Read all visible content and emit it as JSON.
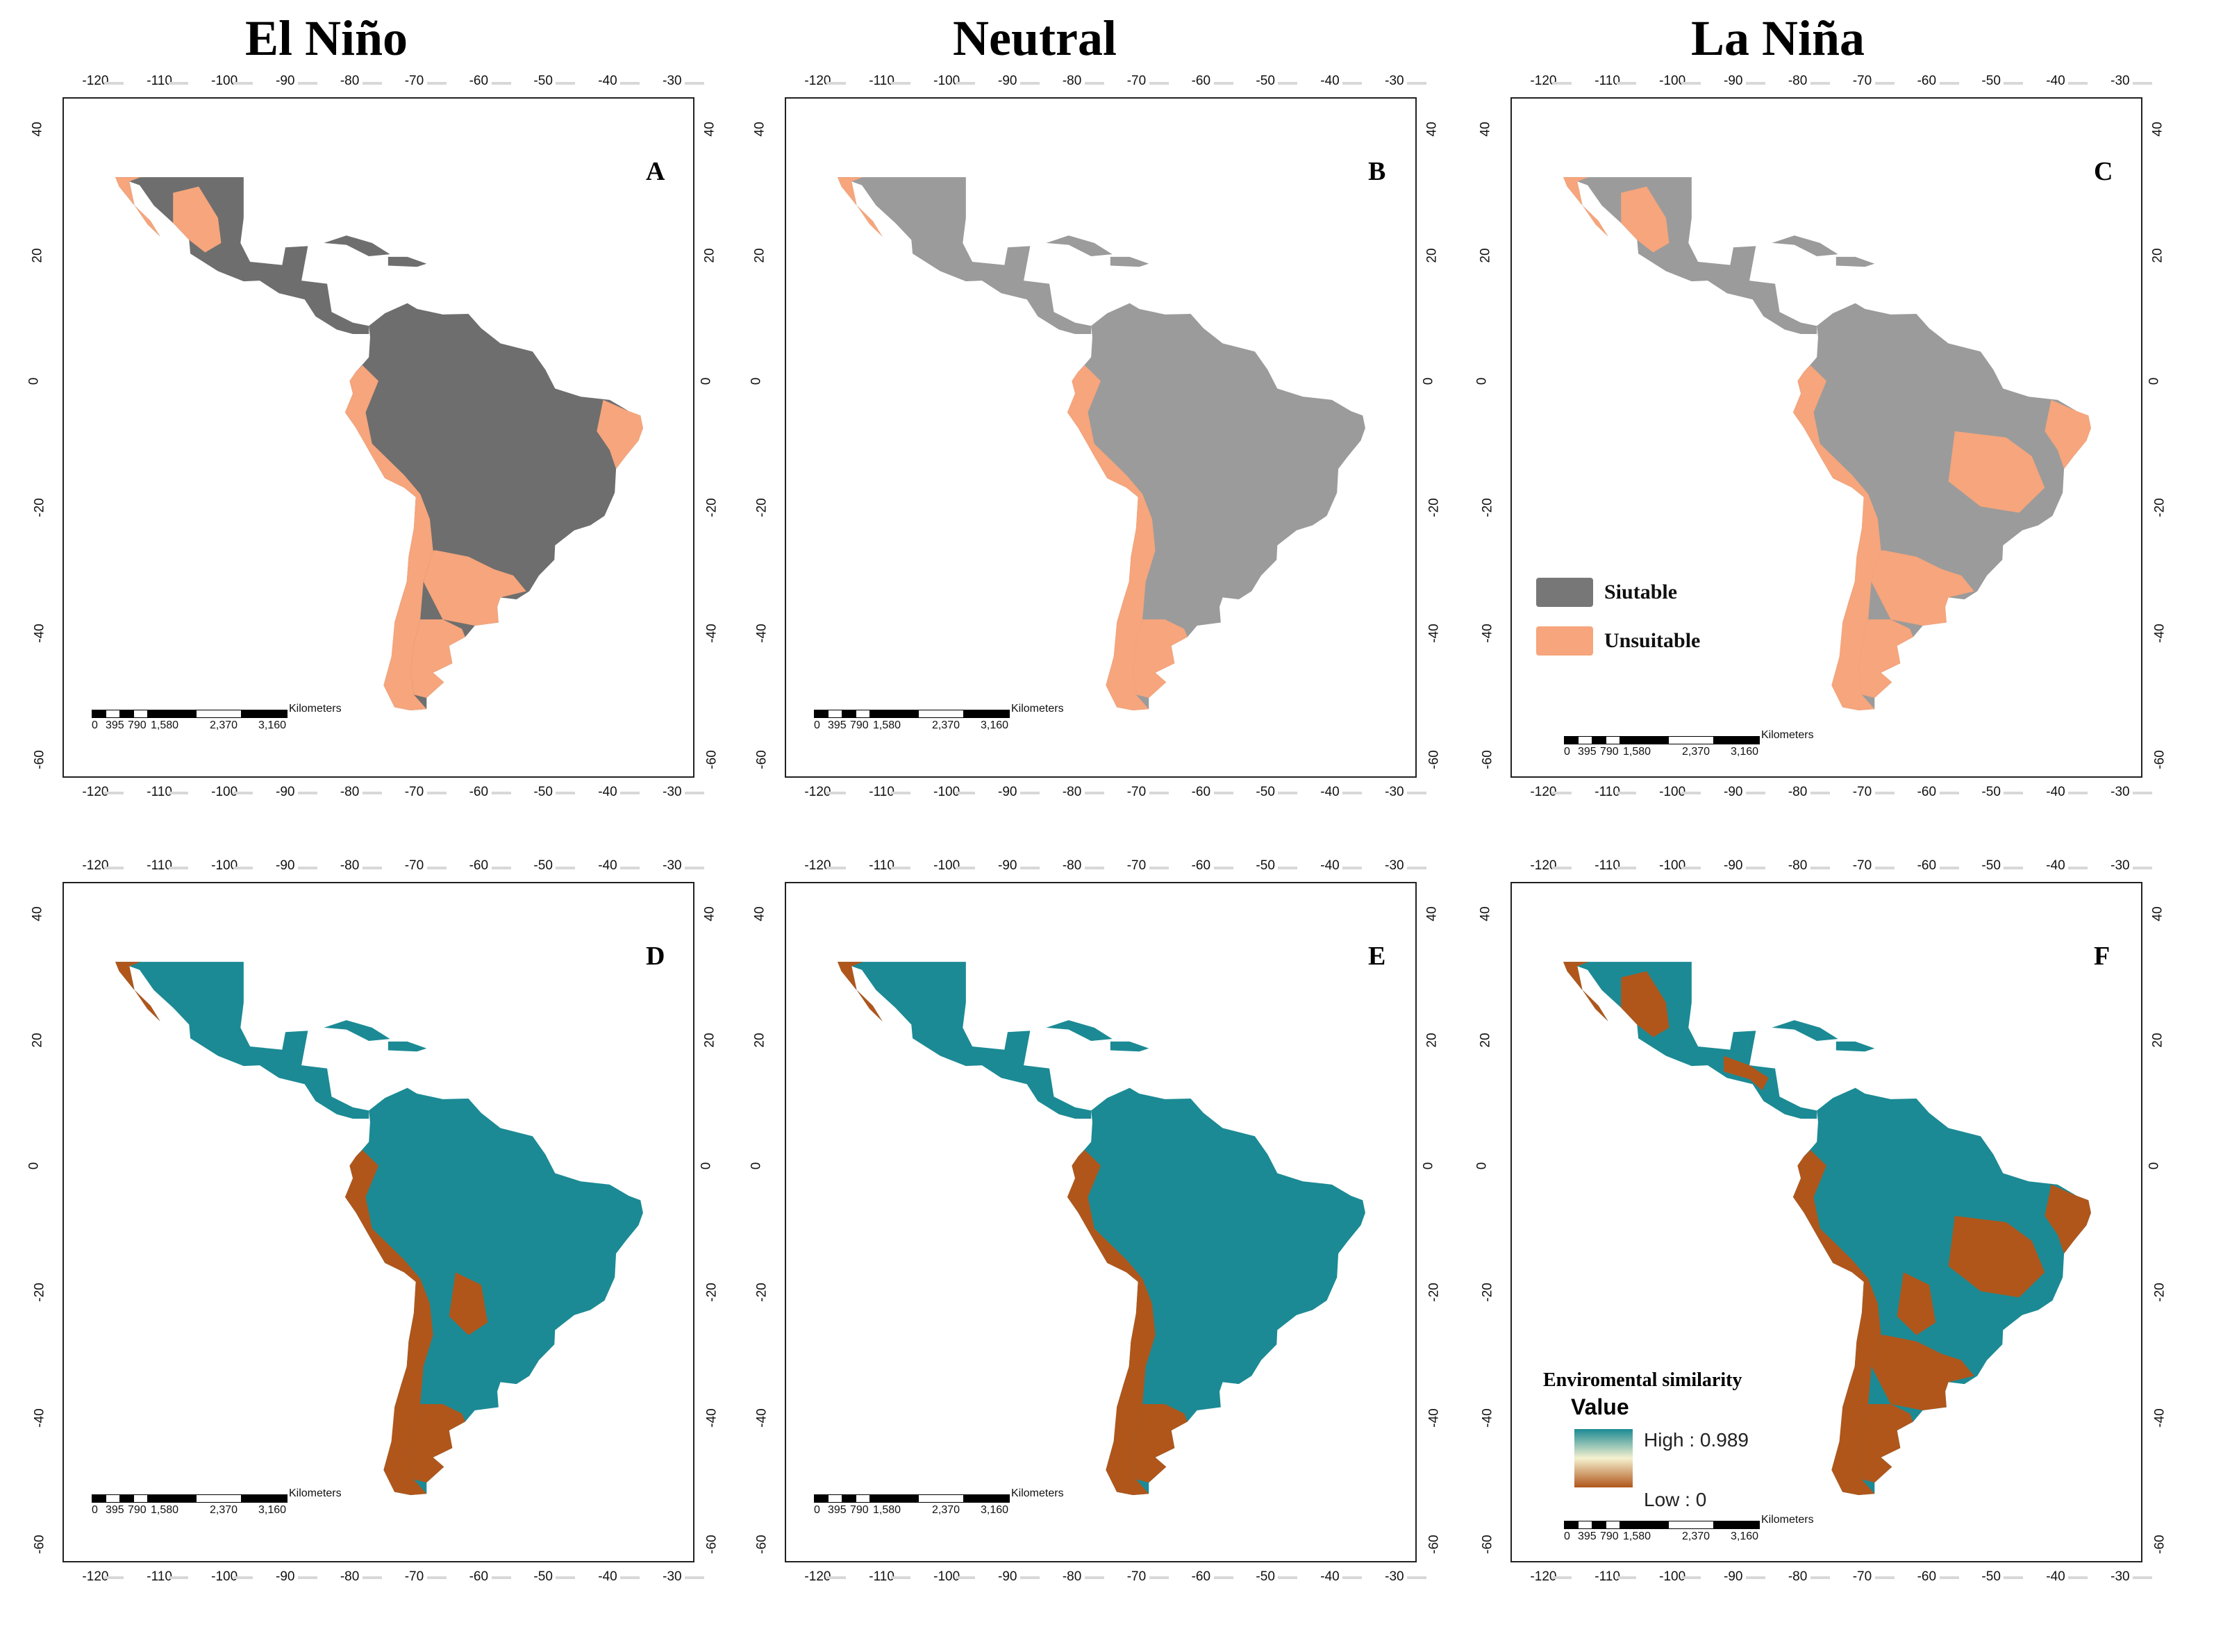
{
  "columns": [
    {
      "title": "El Niño"
    },
    {
      "title": "Neutral"
    },
    {
      "title": "La Niña"
    }
  ],
  "lon_ticks": [
    "-120",
    "-110",
    "-100",
    "-90",
    "-80",
    "-70",
    "-60",
    "-50",
    "-40",
    "-30"
  ],
  "lat_ticks": [
    "40",
    "20",
    "0",
    "-20",
    "-40",
    "-60"
  ],
  "panels": [
    {
      "letter": "A",
      "style": "suitability",
      "column": "El Niño"
    },
    {
      "letter": "B",
      "style": "suitability",
      "column": "Neutral"
    },
    {
      "letter": "C",
      "style": "suitability",
      "column": "La Niña"
    },
    {
      "letter": "D",
      "style": "similarity",
      "column": "El Niño"
    },
    {
      "letter": "E",
      "style": "similarity",
      "column": "Neutral"
    },
    {
      "letter": "F",
      "style": "similarity",
      "column": "La Niña"
    }
  ],
  "scalebar": {
    "unit": "Kilometers",
    "labels": [
      "0",
      "395",
      "790",
      "1,580",
      "2,370",
      "3,160"
    ]
  },
  "legend_suitability": {
    "items": [
      {
        "label": "Siutable",
        "color": "#777777"
      },
      {
        "label": "Unsuitable",
        "color": "#f6a57c"
      }
    ]
  },
  "legend_similarity": {
    "title": "Enviromental similarity",
    "value_label": "Value",
    "high": "High : 0.989",
    "low": "Low : 0"
  },
  "colors": {
    "suitable_dark": "#6e6e6e",
    "suitable_light": "#9b9b9b",
    "unsuitable": "#f6a57c",
    "similarity_high": "#1b8a94",
    "similarity_low": "#b0561b"
  }
}
